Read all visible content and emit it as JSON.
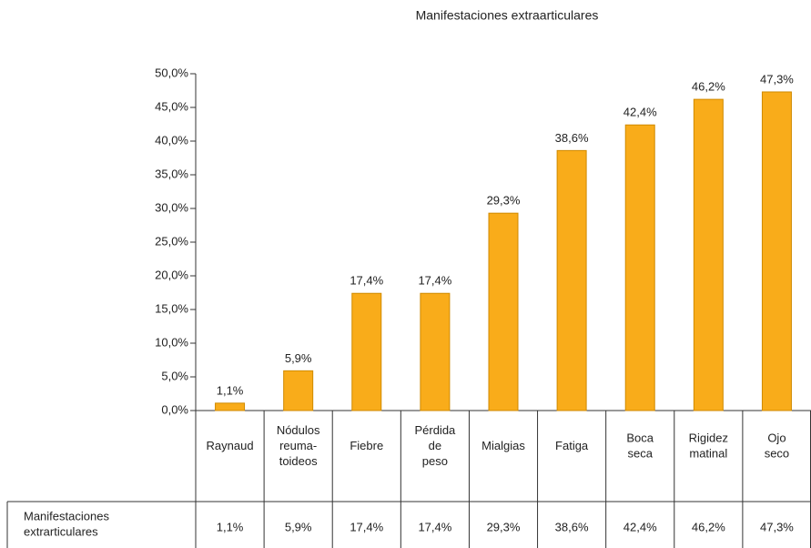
{
  "chart_data": {
    "type": "bar",
    "title": "Manifestaciones extraarticulares",
    "categories": [
      "Raynaud",
      "Nódulos\nreuma-\ntoideos",
      "Fiebre",
      "Pérdida\nde\npeso",
      "Mialgias",
      "Fatiga",
      "Boca\nseca",
      "Rigidez\nmatinal",
      "Ojo\nseco"
    ],
    "series": [
      {
        "name": "Manifestaciones extrarticulares",
        "color": "#f9ac1a",
        "values": [
          1.1,
          5.9,
          17.4,
          17.4,
          29.3,
          38.6,
          42.4,
          46.2,
          47.3
        ],
        "value_labels": [
          "1,1%",
          "5,9%",
          "17,4%",
          "17,4%",
          "29,3%",
          "38,6%",
          "42,4%",
          "46,2%",
          "47,3%"
        ]
      }
    ],
    "ylim": [
      0,
      50
    ],
    "yticks": [
      {
        "value": 0,
        "label": "0,0%"
      },
      {
        "value": 5,
        "label": "5,0%"
      },
      {
        "value": 10,
        "label": "10,0%"
      },
      {
        "value": 15,
        "label": "15,0%"
      },
      {
        "value": 20,
        "label": "20,0%"
      },
      {
        "value": 25,
        "label": "25,0%"
      },
      {
        "value": 30,
        "label": "30,0%"
      },
      {
        "value": 35,
        "label": "35,0%"
      },
      {
        "value": 40,
        "label": "40,0%"
      },
      {
        "value": 45,
        "label": "45,0%"
      },
      {
        "value": 50,
        "label": "50,0%"
      }
    ]
  }
}
